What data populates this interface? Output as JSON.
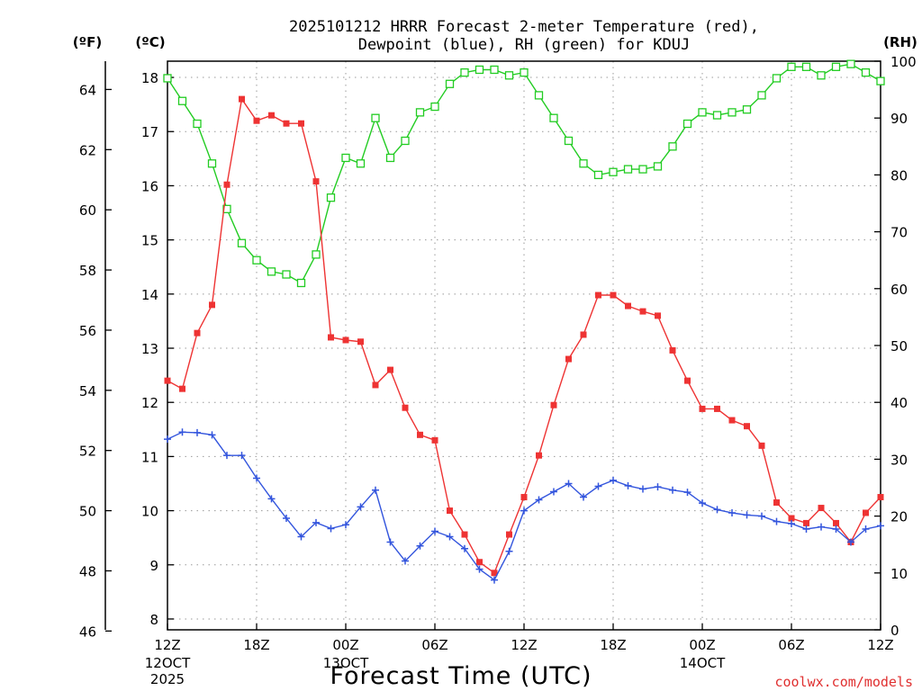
{
  "chart_data": {
    "type": "line",
    "title_line1": "2025101212 HRRR Forecast 2-meter Temperature (red),",
    "title_line2": "Dewpoint (blue), RH (green) for KDUJ",
    "xlabel": "Forecast Time (UTC)",
    "credit": "coolwx.com/models",
    "left_axis_f_label": "(ºF)",
    "left_axis_c_label": "(ºC)",
    "right_axis_label": "(RH)",
    "x_range_hours": [
      0,
      48
    ],
    "y_c_range": [
      7.8,
      18.3
    ],
    "y_rh_range": [
      0,
      100
    ],
    "grid": true,
    "x_ticks": [
      {
        "hour": 0,
        "label": "12Z",
        "sub1": "12OCT",
        "sub2": "2025"
      },
      {
        "hour": 6,
        "label": "18Z"
      },
      {
        "hour": 12,
        "label": "00Z",
        "sub1": "13OCT"
      },
      {
        "hour": 18,
        "label": "06Z"
      },
      {
        "hour": 24,
        "label": "12Z"
      },
      {
        "hour": 30,
        "label": "18Z"
      },
      {
        "hour": 36,
        "label": "00Z",
        "sub1": "14OCT"
      },
      {
        "hour": 42,
        "label": "06Z"
      },
      {
        "hour": 48,
        "label": "12Z"
      }
    ],
    "y_c_ticks": [
      8,
      9,
      10,
      11,
      12,
      13,
      14,
      15,
      16,
      17,
      18
    ],
    "y_f_ticks": [
      46,
      48,
      50,
      52,
      54,
      56,
      58,
      60,
      62,
      64
    ],
    "y_rh_ticks": [
      0,
      10,
      20,
      30,
      40,
      50,
      60,
      70,
      80,
      90,
      100
    ],
    "series": [
      {
        "name": "Temperature (°C)",
        "color": "#ee3333",
        "axis": "c",
        "marker": "filled-square",
        "values": [
          12.4,
          12.25,
          13.28,
          13.8,
          16.02,
          17.6,
          17.2,
          17.3,
          17.15,
          17.15,
          16.08,
          13.2,
          13.15,
          13.12,
          12.32,
          12.6,
          11.9,
          11.4,
          11.3,
          10.0,
          9.56,
          9.05,
          8.85,
          9.56,
          10.25,
          11.02,
          11.95,
          12.8,
          13.25,
          13.98,
          13.98,
          13.78,
          13.68,
          13.6,
          12.96,
          12.4,
          11.88,
          11.88,
          11.67,
          11.56,
          11.2,
          10.15,
          9.86,
          9.77,
          10.05,
          9.77,
          9.42,
          9.96,
          10.25
        ]
      },
      {
        "name": "Dewpoint (°C)",
        "color": "#3355dd",
        "axis": "c",
        "marker": "plus",
        "values": [
          11.32,
          11.45,
          11.44,
          11.4,
          11.02,
          11.02,
          10.6,
          10.22,
          9.86,
          9.52,
          9.78,
          9.67,
          9.74,
          10.07,
          10.38,
          9.42,
          9.07,
          9.35,
          9.62,
          9.52,
          9.3,
          8.92,
          8.72,
          9.25,
          10.0,
          10.2,
          10.35,
          10.5,
          10.25,
          10.45,
          10.56,
          10.46,
          10.4,
          10.44,
          10.38,
          10.34,
          10.14,
          10.02,
          9.96,
          9.92,
          9.9,
          9.8,
          9.76,
          9.66,
          9.7,
          9.66,
          9.42,
          9.66,
          9.72
        ]
      },
      {
        "name": "RH (%)",
        "color": "#22cc22",
        "axis": "rh",
        "marker": "open-square",
        "values": [
          97,
          93,
          89,
          82,
          74,
          68,
          65,
          63,
          62.5,
          61,
          66,
          76,
          83,
          82,
          90,
          83,
          86,
          91,
          92,
          96,
          98,
          98.5,
          98.5,
          97.5,
          98,
          94,
          90,
          86,
          82,
          80,
          80.5,
          81,
          81,
          81.5,
          85,
          89,
          91,
          90.5,
          91,
          91.5,
          94,
          97,
          99,
          99,
          97.5,
          99,
          99.5,
          98,
          96.5
        ]
      }
    ]
  }
}
